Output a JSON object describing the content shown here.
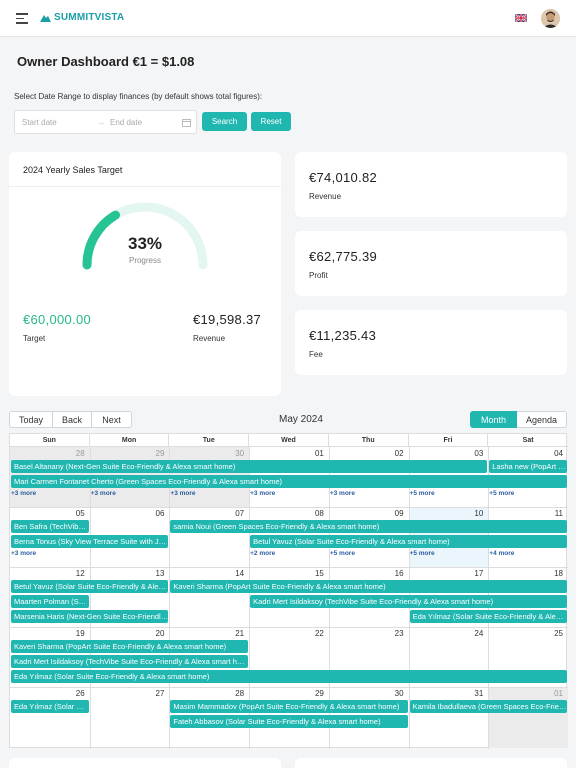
{
  "header": {
    "brand": "SUMMITVISTA",
    "language_icon": "uk-flag-icon"
  },
  "page": {
    "title": "Owner Dashboard €1 = $1.08"
  },
  "filters": {
    "range_label": "Select Date Range to display finances (by default shows total figures):",
    "start_placeholder": "Start date",
    "end_placeholder": "End date",
    "search_label": "Search",
    "reset_label": "Reset"
  },
  "target_card": {
    "title": "2024 Yearly Sales Target",
    "progress_percent": "33%",
    "progress_fraction": 0.33,
    "progress_label": "Progress",
    "target_value": "€60,000.00",
    "target_label": "Target",
    "revenue_value": "€19,598.37",
    "revenue_label": "Revenue"
  },
  "stats": [
    {
      "value": "€74,010.82",
      "label": "Revenue"
    },
    {
      "value": "€62,775.39",
      "label": "Profit"
    },
    {
      "value": "€11,235.43",
      "label": "Fee"
    }
  ],
  "calendar": {
    "today_label": "Today",
    "back_label": "Back",
    "next_label": "Next",
    "month_label": "May 2024",
    "view_month": "Month",
    "view_agenda": "Agenda",
    "weekdays": [
      "Sun",
      "Mon",
      "Tue",
      "Wed",
      "Thu",
      "Fri",
      "Sat"
    ],
    "weeks": [
      [
        "28",
        "29",
        "30",
        "01",
        "02",
        "03",
        "04"
      ],
      [
        "05",
        "06",
        "07",
        "08",
        "09",
        "10",
        "11"
      ],
      [
        "12",
        "13",
        "14",
        "15",
        "16",
        "17",
        "18"
      ],
      [
        "19",
        "20",
        "21",
        "22",
        "23",
        "24",
        "25"
      ],
      [
        "26",
        "27",
        "28",
        "29",
        "30",
        "31",
        "01"
      ]
    ],
    "events": [
      {
        "week": 0,
        "lane": 0,
        "start": 0,
        "span": 6,
        "title": "Basel Altanany (Next-Gen Suite Eco-Friendly & Alexa smart home)"
      },
      {
        "week": 0,
        "lane": 0,
        "start": 6,
        "span": 1,
        "title": "Lasha new (PopArt Suite Eco-Friendly & Alexa smart home)"
      },
      {
        "week": 0,
        "lane": 1,
        "start": 0,
        "span": 7,
        "title": "Mari Carmen Fontanet Cherto (Green Spaces Eco-Friendly & Alexa smart home)"
      },
      {
        "week": 1,
        "lane": 0,
        "start": 0,
        "span": 1,
        "title": "Ben Safra (TechVibe Suite Eco-Friendly & Alexa smart home)"
      },
      {
        "week": 1,
        "lane": 0,
        "start": 2,
        "span": 5,
        "title": "samia Noui (Green Spaces Eco-Friendly & Alexa smart home)"
      },
      {
        "week": 1,
        "lane": 1,
        "start": 0,
        "span": 2,
        "title": "Berna Tonus (Sky View Terrace Suite with Jacuzzi Eco-Friendly & Alexa smart home)"
      },
      {
        "week": 1,
        "lane": 1,
        "start": 3,
        "span": 4,
        "title": "Betul Yavuz (Solar Suite Eco-Friendly & Alexa smart home)"
      },
      {
        "week": 2,
        "lane": 0,
        "start": 0,
        "span": 2,
        "title": "Betul Yavuz (Solar Suite Eco-Friendly & Alexa smart home)"
      },
      {
        "week": 2,
        "lane": 0,
        "start": 2,
        "span": 5,
        "title": "Kaveri Sharma (PopArt Suite Eco-Friendly & Alexa smart home)"
      },
      {
        "week": 2,
        "lane": 1,
        "start": 0,
        "span": 1,
        "title": "Maarten Polman (Sky View Terrace Suite Eco-Friendly & Alexa smart home)"
      },
      {
        "week": 2,
        "lane": 1,
        "start": 3,
        "span": 4,
        "title": "Kadri Mert Isildaksoy (TechVibe Suite Eco-Friendly & Alexa smart home)"
      },
      {
        "week": 2,
        "lane": 2,
        "start": 0,
        "span": 2,
        "title": "Marsenia Haris (Next-Gen Suite Eco-Friendly & Alexa smart home)"
      },
      {
        "week": 2,
        "lane": 2,
        "start": 5,
        "span": 2,
        "title": "Eda Yılmaz (Solar Suite Eco-Friendly & Alexa smart home)"
      },
      {
        "week": 3,
        "lane": 0,
        "start": 0,
        "span": 3,
        "title": "Kaveri Sharma (PopArt Suite Eco-Friendly & Alexa smart home)"
      },
      {
        "week": 3,
        "lane": 1,
        "start": 0,
        "span": 3,
        "title": "Kadri Mert Isildaksoy (TechVibe Suite Eco-Friendly & Alexa smart home)"
      },
      {
        "week": 3,
        "lane": 2,
        "start": 0,
        "span": 7,
        "title": "Eda Yılmaz (Solar Suite Eco-Friendly & Alexa smart home)"
      },
      {
        "week": 4,
        "lane": 0,
        "start": 0,
        "span": 1,
        "title": "Eda Yılmaz (Solar Suite Eco-Friendly & Alexa smart home)"
      },
      {
        "week": 4,
        "lane": 0,
        "start": 2,
        "span": 3,
        "title": "Masim Mammadov (PopArt Suite Eco-Friendly & Alexa smart home)"
      },
      {
        "week": 4,
        "lane": 0,
        "start": 5,
        "span": 2,
        "title": "Kamila Ibadullaeva (Green Spaces Eco-Friendly & Alexa smart home)"
      },
      {
        "week": 4,
        "lane": 1,
        "start": 2,
        "span": 3,
        "title": "Fateh Abbasov (Solar Suite Eco-Friendly & Alexa smart home)"
      }
    ],
    "more_links": [
      {
        "week": 0,
        "day": 0,
        "label": "+3 more"
      },
      {
        "week": 0,
        "day": 1,
        "label": "+3 more"
      },
      {
        "week": 0,
        "day": 2,
        "label": "+3 more"
      },
      {
        "week": 0,
        "day": 3,
        "label": "+3 more"
      },
      {
        "week": 0,
        "day": 4,
        "label": "+3 more"
      },
      {
        "week": 0,
        "day": 5,
        "label": "+5 more"
      },
      {
        "week": 0,
        "day": 6,
        "label": "+5 more"
      },
      {
        "week": 1,
        "day": 0,
        "label": "+3 more"
      },
      {
        "week": 1,
        "day": 3,
        "label": "+2 more"
      },
      {
        "week": 1,
        "day": 4,
        "label": "+5 more"
      },
      {
        "week": 1,
        "day": 5,
        "label": "+5 more"
      },
      {
        "week": 1,
        "day": 6,
        "label": "+4 more"
      }
    ]
  }
}
